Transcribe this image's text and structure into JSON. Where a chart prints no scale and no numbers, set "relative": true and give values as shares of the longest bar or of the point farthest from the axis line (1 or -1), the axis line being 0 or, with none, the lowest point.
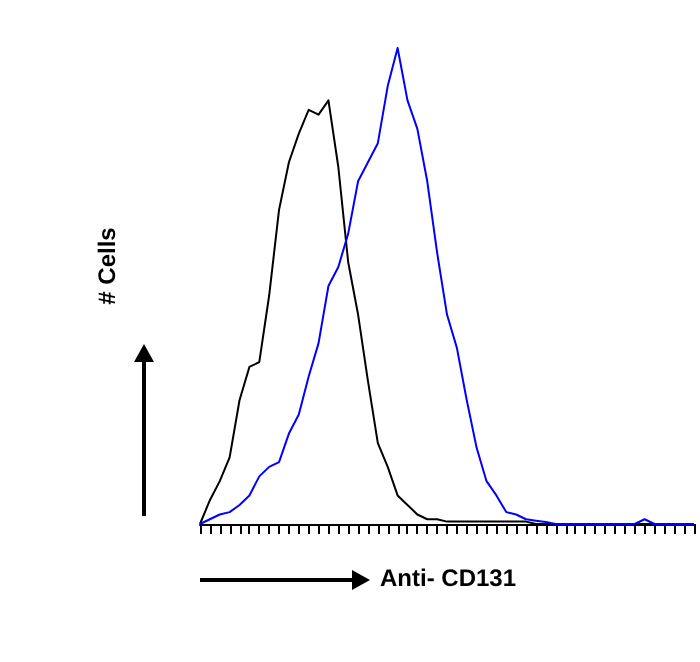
{
  "chart_data": {
    "type": "line",
    "relative": true,
    "xlabel": "Anti- CD131",
    "ylabel": "# Cells",
    "grid": false,
    "marker": "none",
    "categories": [
      null,
      null,
      null,
      null,
      null,
      null,
      null,
      null,
      null,
      null,
      null,
      null,
      null,
      null,
      null,
      null,
      null,
      null,
      null,
      null,
      null,
      null,
      null,
      null,
      null,
      null,
      null,
      null,
      null,
      null,
      null,
      null,
      null,
      null,
      null,
      null,
      null,
      null,
      null,
      null,
      null,
      null,
      null,
      null,
      null,
      null,
      null,
      null,
      null,
      null,
      null
    ],
    "series": [
      {
        "color": "#000000",
        "values": [
          0,
          0.05,
          0.09,
          0.14,
          0.26,
          0.33,
          0.34,
          0.48,
          0.66,
          0.76,
          0.82,
          0.87,
          0.86,
          0.89,
          0.75,
          0.55,
          0.44,
          0.3,
          0.17,
          0.12,
          0.06,
          0.04,
          0.02,
          0.01,
          0.01,
          0.005,
          0.005,
          0.005,
          0.005,
          0.005,
          0.005,
          0.005,
          0.005,
          0.005,
          0,
          0,
          0,
          0,
          0,
          0,
          0,
          0,
          0,
          0,
          0,
          0,
          0,
          0,
          0,
          0,
          0
        ]
      },
      {
        "color": "#0000ff",
        "values": [
          0,
          0.01,
          0.02,
          0.025,
          0.04,
          0.06,
          0.1,
          0.12,
          0.13,
          0.19,
          0.23,
          0.31,
          0.38,
          0.5,
          0.54,
          0.61,
          0.72,
          0.76,
          0.8,
          0.92,
          1,
          0.89,
          0.83,
          0.72,
          0.57,
          0.44,
          0.37,
          0.26,
          0.16,
          0.09,
          0.06,
          0.025,
          0.02,
          0.01,
          0.007,
          0.004,
          0,
          0,
          0,
          0,
          0,
          0,
          0,
          0,
          0,
          0.01,
          0,
          0,
          0,
          0,
          0
        ]
      }
    ]
  }
}
